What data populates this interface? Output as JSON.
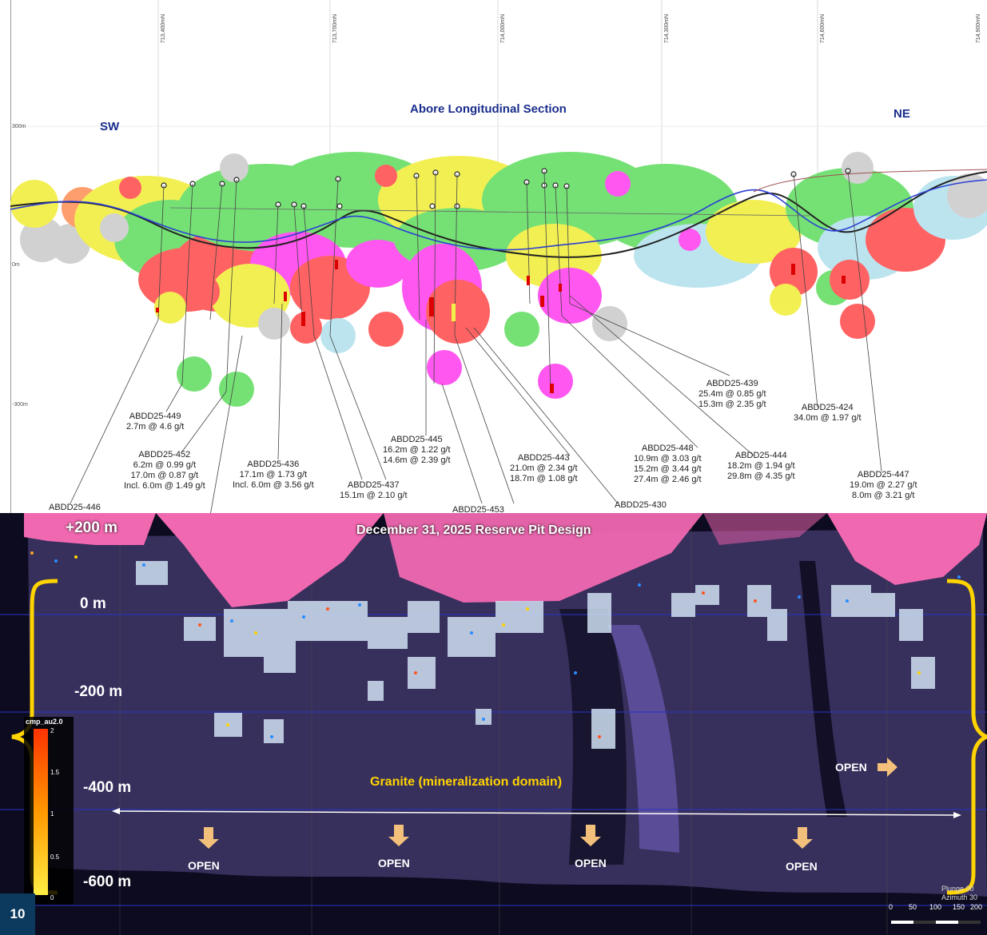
{
  "top_section": {
    "title": "Abore Longitudinal Section",
    "left_dir": "SW",
    "right_dir": "NE",
    "elev_labels": [
      "300m",
      "0m",
      "-300m"
    ],
    "northing_labels": [
      "713,400mN",
      "713,700mN",
      "714,000mN",
      "714,300mN",
      "714,600mN",
      "714,900mN"
    ],
    "holes": [
      {
        "id": "ABDD25-449",
        "lines": [
          "2.7m @ 4.6 g/t"
        ]
      },
      {
        "id": "ABDD25-452",
        "lines": [
          "6.2m @ 0.99 g/t",
          "17.0m @ 0.87 g/t",
          "Incl. 6.0m @ 1.49 g/t"
        ]
      },
      {
        "id": "ABDD25-446",
        "lines": []
      },
      {
        "id": "ABDD25-436",
        "lines": [
          "17.1m @ 1.73 g/t",
          "Incl. 6.0m @ 3.56 g/t"
        ]
      },
      {
        "id": "ABDD25-437",
        "lines": [
          "15.1m @ 2.10 g/t"
        ]
      },
      {
        "id": "ABDD25-445",
        "lines": [
          "16.2m @ 1.22 g/t",
          "14.6m @ 2.39 g/t"
        ]
      },
      {
        "id": "ABDD25-453",
        "lines": []
      },
      {
        "id": "ABDD25-443",
        "lines": [
          "21.0m @ 2.34 g/t",
          "18.7m @ 1.08 g/t"
        ]
      },
      {
        "id": "ABDD25-448",
        "lines": [
          "10.9m @ 3.03 g/t",
          "15.2m @ 3.44 g/t",
          "27.4m @ 2.46 g/t"
        ]
      },
      {
        "id": "ABDD25-430",
        "lines": []
      },
      {
        "id": "ABDD25-439",
        "lines": [
          "25.4m @ 0.85 g/t",
          "15.3m @ 2.35 g/t"
        ]
      },
      {
        "id": "ABDD25-444",
        "lines": [
          "18.2m @ 1.94 g/t",
          "29.8m @ 4.35 g/t"
        ]
      },
      {
        "id": "ABDD25-424",
        "lines": [
          "34.0m @ 1.97 g/t"
        ]
      },
      {
        "id": "ABDD25-447",
        "lines": [
          "19.0m @ 2.27 g/t",
          "8.0m @ 3.21 g/t"
        ]
      }
    ]
  },
  "bottom_section": {
    "title": "December 31, 2025 Reserve Pit Design",
    "depths": [
      "+200 m",
      "0 m",
      "-200 m",
      "-400 m",
      "-600 m"
    ],
    "domain_label": "Granite (mineralization domain)",
    "open_label": "OPEN",
    "legend": {
      "title": "cmp_au2.0",
      "ticks": [
        "2",
        "1.5",
        "1",
        "0.5",
        "0"
      ]
    },
    "orientation": {
      "plunge": "Plunge 00",
      "azimuth": "Azimuth 30"
    },
    "scale_ticks": [
      "0",
      "50",
      "100",
      "150",
      "200"
    ]
  },
  "page_number": "10",
  "colors": {
    "pit": "#f068b0",
    "granite": "#3a3260",
    "accent": "#ffd400",
    "arrow": "#f2c07a",
    "page_box": "#0b3a5e"
  }
}
